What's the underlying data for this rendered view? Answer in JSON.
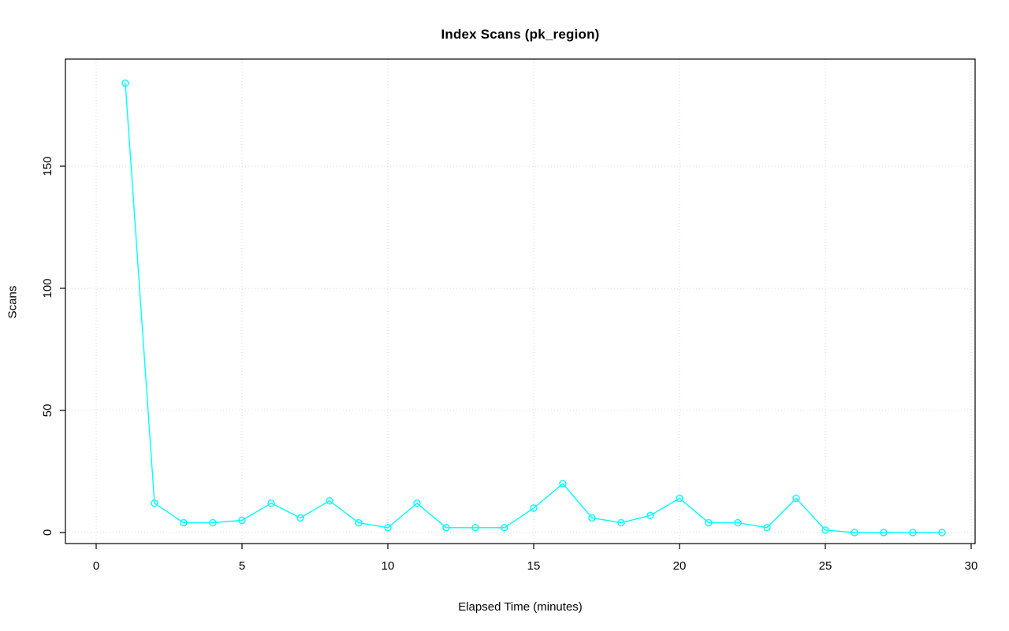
{
  "chart_data": {
    "type": "line",
    "title": "Index Scans (pk_region)",
    "xlabel": "Elapsed Time (minutes)",
    "ylabel": "Scans",
    "x": [
      1,
      2,
      3,
      4,
      5,
      6,
      7,
      8,
      9,
      10,
      11,
      12,
      13,
      14,
      15,
      16,
      17,
      18,
      19,
      20,
      21,
      22,
      23,
      24,
      25,
      26,
      27,
      28,
      29
    ],
    "values": [
      184,
      12,
      4,
      4,
      5,
      12,
      6,
      13,
      4,
      2,
      12,
      2,
      2,
      2,
      10,
      20,
      6,
      4,
      7,
      14,
      4,
      4,
      2,
      14,
      1,
      0,
      0,
      0,
      0
    ],
    "x_ticks": [
      0,
      5,
      10,
      15,
      20,
      25,
      30
    ],
    "y_ticks": [
      0,
      50,
      100,
      150
    ],
    "xlim": [
      0,
      30
    ],
    "ylim": [
      0,
      185
    ],
    "grid": true,
    "legend": "none",
    "marker": "open-circle",
    "line_color": "#00FFFF",
    "grid_color": "#D9D9D9",
    "axis_color": "#000000"
  }
}
